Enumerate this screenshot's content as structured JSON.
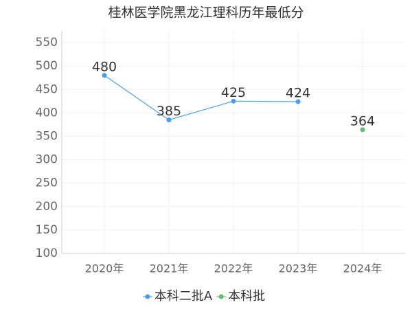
{
  "chart_data": {
    "type": "line",
    "title": "桂林医学院黑龙江理科历年最低分",
    "categories": [
      "2020年",
      "2021年",
      "2022年",
      "2023年",
      "2024年"
    ],
    "series": [
      {
        "name": "本科二批A",
        "color": "#4a9fea",
        "values": [
          480,
          385,
          425,
          424,
          null
        ]
      },
      {
        "name": "本科批",
        "color": "#5cc26e",
        "values": [
          null,
          null,
          null,
          null,
          364
        ]
      }
    ],
    "ylim": [
      100,
      575
    ],
    "yticks": [
      100,
      150,
      200,
      250,
      300,
      350,
      400,
      450,
      500,
      550
    ],
    "grid": true,
    "legend": "bottom"
  }
}
